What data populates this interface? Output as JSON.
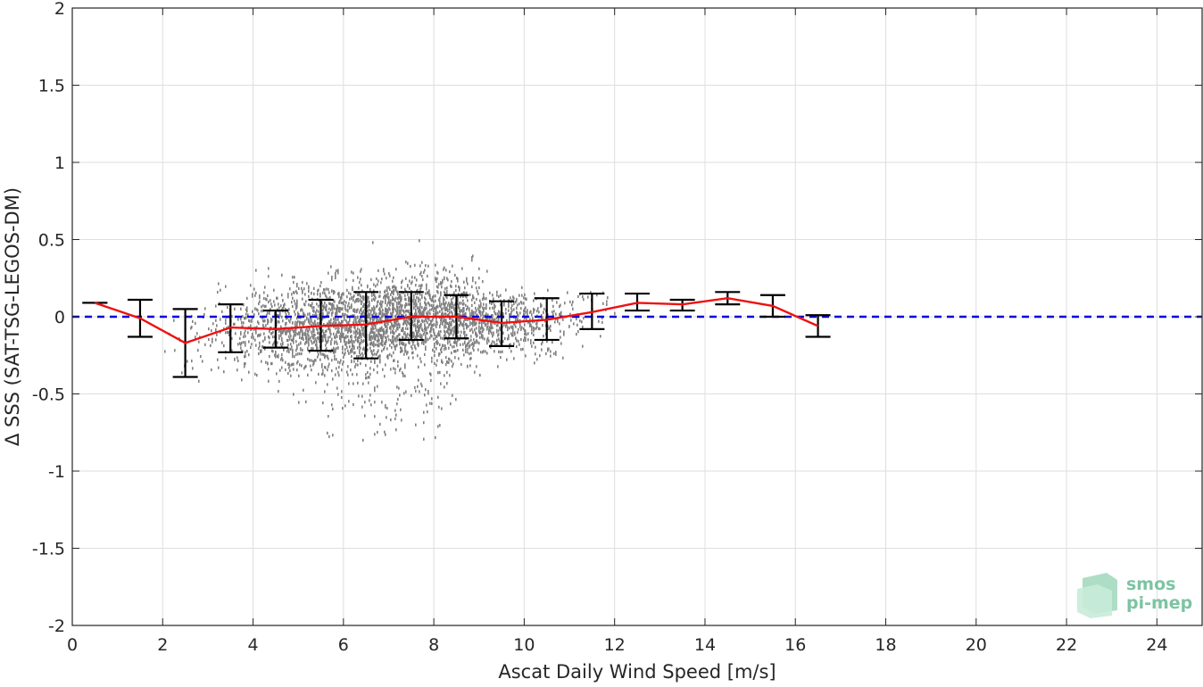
{
  "chart_data": {
    "type": "scatter",
    "xlabel": "Ascat Daily Wind Speed [m/s]",
    "ylabel": "Δ SSS (SAT-TSG-LEGOS-DM)",
    "xlim": [
      0,
      25
    ],
    "ylim": [
      -2,
      2
    ],
    "xticks": [
      0,
      2,
      4,
      6,
      8,
      10,
      12,
      14,
      16,
      18,
      20,
      22,
      24
    ],
    "yticks": [
      -2,
      -1.5,
      -1,
      -0.5,
      0,
      0.5,
      1,
      1.5,
      2
    ],
    "xtick_labels": [
      "0",
      "2",
      "4",
      "6",
      "8",
      "10",
      "12",
      "14",
      "16",
      "18",
      "20",
      "22",
      "24"
    ],
    "ytick_labels": [
      "-2",
      "-1.5",
      "-1",
      "-0.5",
      "0",
      "0.5",
      "1",
      "1.5",
      "2"
    ],
    "grid": true,
    "reference_line": {
      "y": 0,
      "style": "dashed",
      "color": "#0000dd"
    },
    "mean_series": {
      "color": "#ee1111",
      "x": [
        0.5,
        1.5,
        2.5,
        3.5,
        4.5,
        5.5,
        6.5,
        7.5,
        8.5,
        9.5,
        10.5,
        11.5,
        12.5,
        13.5,
        14.5,
        15.5,
        16.5
      ],
      "y": [
        0.09,
        -0.01,
        -0.17,
        -0.07,
        -0.08,
        -0.06,
        -0.05,
        0.0,
        0.0,
        -0.04,
        -0.02,
        0.03,
        0.09,
        0.08,
        0.12,
        0.07,
        -0.06
      ],
      "err_low": [
        0.09,
        -0.13,
        -0.39,
        -0.23,
        -0.2,
        -0.22,
        -0.27,
        -0.15,
        -0.14,
        -0.19,
        -0.15,
        -0.08,
        0.04,
        0.04,
        0.08,
        0.0,
        -0.13
      ],
      "err_high": [
        0.09,
        0.11,
        0.05,
        0.08,
        0.04,
        0.11,
        0.16,
        0.16,
        0.14,
        0.1,
        0.12,
        0.15,
        0.15,
        0.11,
        0.16,
        0.14,
        0.01
      ]
    },
    "scatter": {
      "color": "#808080",
      "description_count": 3500,
      "x_range": [
        2.0,
        12.0
      ],
      "y_range": [
        -0.8,
        0.52
      ]
    },
    "logo": {
      "line1": "smos",
      "line2": "pi-mep"
    }
  }
}
